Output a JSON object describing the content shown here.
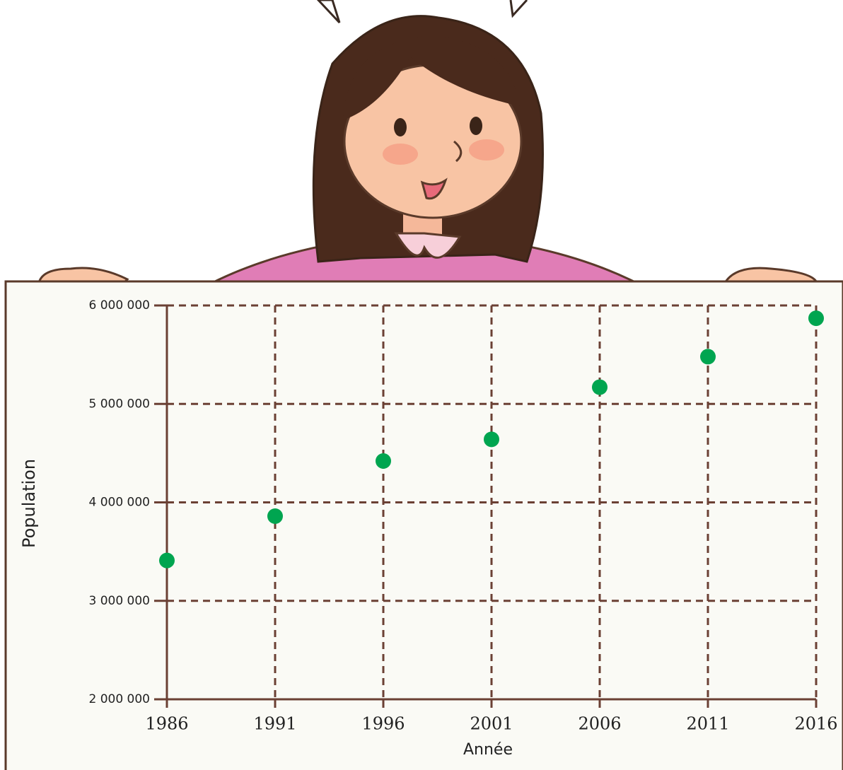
{
  "chart_data": {
    "type": "scatter",
    "x_label": "Année",
    "y_label": "Population",
    "x": [
      1986,
      1991,
      1996,
      2001,
      2006,
      2011,
      2016
    ],
    "series": [
      {
        "color": "#00a550",
        "values": [
          3410000,
          3860000,
          4420000,
          4640000,
          5170000,
          5480000,
          5870000
        ]
      }
    ],
    "xlim": [
      1986,
      2016
    ],
    "xticks": [
      1986,
      1991,
      1996,
      2001,
      2006,
      2011,
      2016
    ],
    "ylim": [
      2000000,
      6000000
    ],
    "yticks": [
      {
        "value": 2000000,
        "label": "2 000 000"
      },
      {
        "value": 3000000,
        "label": "3 000 000"
      },
      {
        "value": 4000000,
        "label": "4 000 000"
      },
      {
        "value": 5000000,
        "label": "5 000 000"
      },
      {
        "value": 6000000,
        "label": "6 000 000"
      }
    ],
    "grid": true
  }
}
